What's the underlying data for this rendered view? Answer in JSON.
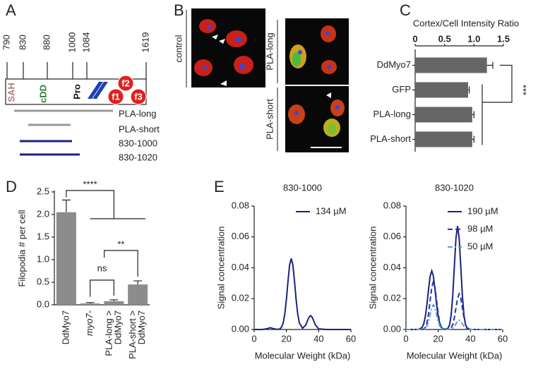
{
  "panel_labels": [
    "A",
    "B",
    "C",
    "D",
    "E"
  ],
  "panel_a": {
    "positions": [
      790,
      830,
      880,
      1000,
      1084,
      1619
    ],
    "domains": [
      "SAH",
      "cDD",
      "Pro"
    ],
    "motifs": [
      "f1",
      "f2",
      "f3"
    ],
    "constructs": [
      "PLA-long",
      "PLA-short",
      "830-1000",
      "830-1020"
    ]
  },
  "panel_b": {
    "labels": [
      "control",
      "PLA-long",
      "PLA-short"
    ]
  },
  "chart_data": [
    {
      "type": "hbar",
      "title": "Cortex/Cell Intensity Ratio",
      "categories": [
        "DdMyo7",
        "GFP",
        "PLA-long",
        "PLA-short"
      ],
      "values": [
        1.22,
        0.9,
        0.97,
        0.97
      ],
      "errors": [
        0.1,
        0.02,
        0.03,
        0.03
      ],
      "color": "#666666",
      "xlim": [
        0,
        1.5
      ],
      "xticks": [
        0,
        0.5,
        {
          "value": 1,
          "label": "1.0"
        },
        1.5
      ],
      "annotations": [
        "***"
      ]
    },
    {
      "type": "bar",
      "ylabel": "Filopodia # per cell",
      "categories": [
        [
          "DdMyo7"
        ],
        [
          "myo7-"
        ],
        [
          "PLA-long >",
          "DdMyo7"
        ],
        [
          "PLA-short >",
          "DdMyo7"
        ]
      ],
      "values": [
        2.05,
        0.03,
        0.08,
        0.45
      ],
      "errors": [
        0.27,
        0.02,
        0.03,
        0.08
      ],
      "color": "#8c8c8c",
      "ylim": [
        0,
        2.5
      ],
      "yticks": [
        {
          "value": 0,
          "label": "0.0"
        },
        0.5,
        {
          "value": 1,
          "label": "1.0"
        },
        1.5,
        {
          "value": 2,
          "label": "2.0"
        },
        2.5
      ],
      "annotations": [
        "****",
        "ns",
        "**"
      ]
    },
    {
      "type": "line",
      "title": "830-1000",
      "xlabel": "Molecular Weight (kDa)",
      "ylabel": "Signal concentration",
      "x": [
        0,
        5,
        8,
        10,
        12,
        14,
        15,
        16,
        17,
        18,
        19,
        20,
        21,
        22,
        23,
        24,
        25,
        26,
        27,
        28,
        30,
        32,
        33,
        34,
        35,
        36,
        37,
        38,
        40,
        45,
        50,
        60
      ],
      "series": [
        {
          "name": "134 µM",
          "color": "#1a237e",
          "linestyle": "solid",
          "values": [
            0,
            0,
            0.0005,
            0.0012,
            0.0005,
            0.0001,
            0.0001,
            0.0004,
            0.0015,
            0.0043,
            0.0101,
            0.0196,
            0.0315,
            0.0419,
            0.046,
            0.0419,
            0.0315,
            0.0196,
            0.0101,
            0.0043,
            0.0008,
            0.0029,
            0.0055,
            0.0079,
            0.009,
            0.0079,
            0.0055,
            0.0029,
            0.0004,
            0,
            0,
            0
          ]
        }
      ],
      "xlim": [
        0,
        60
      ],
      "xticks": [
        0,
        20,
        40,
        60
      ],
      "ylim": [
        0,
        0.08
      ],
      "yticks": [
        {
          "value": 0,
          "label": "0.00"
        },
        0.02,
        0.04,
        0.06,
        0.08
      ]
    },
    {
      "type": "line",
      "title": "830-1020",
      "xlabel": "Molecular Weight (kDa)",
      "ylabel": "Signal concentration",
      "x": [
        0,
        5,
        8,
        10,
        11,
        12,
        13,
        14,
        15,
        16,
        17,
        18,
        19,
        20,
        21,
        22,
        23,
        24,
        26,
        27,
        28,
        29,
        30,
        31,
        32,
        33,
        34,
        35,
        36,
        37,
        38,
        40,
        45,
        50,
        60
      ],
      "series": [
        {
          "name": "190 µM",
          "color": "#1a237e",
          "linestyle": "solid",
          "values": [
            0,
            0,
            0.0001,
            0.0013,
            0.0036,
            0.0084,
            0.0162,
            0.026,
            0.0346,
            0.038,
            0.0346,
            0.026,
            0.0162,
            0.0084,
            0.0036,
            0.0013,
            0.0004,
            0.0001,
            0.0007,
            0.0029,
            0.009,
            0.0218,
            0.0407,
            0.0591,
            0.067,
            0.0591,
            0.0407,
            0.0218,
            0.009,
            0.0029,
            0.0007,
            0,
            0,
            0,
            0
          ]
        },
        {
          "name": "98 µM",
          "color": "#2233aa",
          "linestyle": "dashed",
          "values": [
            0,
            0,
            0,
            0,
            0.0003,
            0.0014,
            0.0042,
            0.0101,
            0.0188,
            0.0273,
            0.031,
            0.0273,
            0.0188,
            0.0101,
            0.0042,
            0.0014,
            0.0003,
            0.0001,
            0.0001,
            0.0003,
            0.001,
            0.0031,
            0.0075,
            0.014,
            0.0203,
            0.023,
            0.0203,
            0.014,
            0.0075,
            0.0031,
            0.001,
            0.0001,
            0,
            0,
            0
          ]
        },
        {
          "name": "50 µM",
          "color": "#5b9bd5",
          "linestyle": "dashdot",
          "values": [
            0,
            0,
            0,
            0,
            0.0002,
            0.0007,
            0.0022,
            0.0052,
            0.0097,
            0.0141,
            0.016,
            0.0141,
            0.0097,
            0.0052,
            0.0022,
            0.0007,
            0.0002,
            0,
            0,
            0.0001,
            0.0003,
            0.0008,
            0.002,
            0.0036,
            0.0053,
            0.006,
            0.0053,
            0.0036,
            0.002,
            0.0008,
            0.0003,
            0,
            0,
            0,
            0
          ]
        }
      ],
      "xlim": [
        0,
        60
      ],
      "xticks": [
        0,
        20,
        40,
        60
      ],
      "ylim": [
        0,
        0.08
      ],
      "yticks": [
        {
          "value": 0,
          "label": "0.00"
        },
        0.02,
        0.04,
        0.06,
        0.08
      ]
    }
  ]
}
